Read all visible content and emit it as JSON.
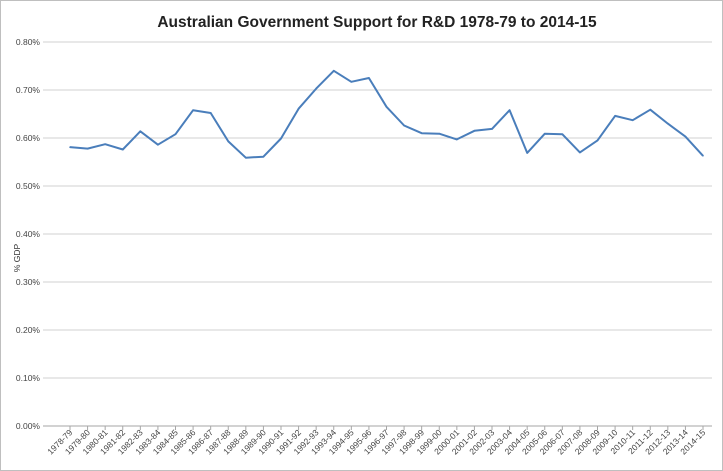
{
  "chart_data": {
    "type": "line",
    "title": "Australian Government Support for R&D 1978-79 to 2014-15",
    "xlabel": "",
    "ylabel": "% GDP",
    "ylim": [
      0,
      0.8
    ],
    "yticks": [
      "0.00%",
      "0.10%",
      "0.20%",
      "0.30%",
      "0.40%",
      "0.50%",
      "0.60%",
      "0.70%",
      "0.80%"
    ],
    "grid": true,
    "legend": "none",
    "line_color": "#4a7ebb",
    "categories": [
      "1978-79",
      "1979-80",
      "1980-81",
      "1981-82",
      "1982-83",
      "1983-84",
      "1984-85",
      "1985-86",
      "1986-87",
      "1987-88",
      "1988-89",
      "1989-90",
      "1990-91",
      "1991-92",
      "1992-93",
      "1993-94",
      "1994-95",
      "1995-96",
      "1996-97",
      "1997-98",
      "1998-99",
      "1999-00",
      "2000-01",
      "2001-02",
      "2002-03",
      "2003-04",
      "2004-05",
      "2005-06",
      "2006-07",
      "2007-08",
      "2008-09",
      "2009-10",
      "2010-11",
      "2011-12",
      "2012-13",
      "2013-14",
      "2014-15"
    ],
    "series": [
      {
        "name": "% GDP",
        "values": [
          0.581,
          0.578,
          0.587,
          0.576,
          0.614,
          0.586,
          0.608,
          0.658,
          0.652,
          0.593,
          0.559,
          0.561,
          0.599,
          0.661,
          0.703,
          0.74,
          0.717,
          0.725,
          0.665,
          0.626,
          0.61,
          0.609,
          0.597,
          0.615,
          0.619,
          0.658,
          0.569,
          0.609,
          0.608,
          0.57,
          0.595,
          0.646,
          0.637,
          0.659,
          0.63,
          0.603,
          0.563
        ]
      }
    ]
  }
}
